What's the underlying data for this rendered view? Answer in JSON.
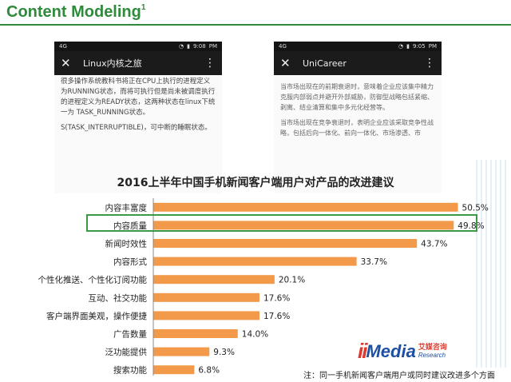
{
  "slide": {
    "title": "Content Modeling",
    "title_sup": "1"
  },
  "phones": [
    {
      "status_left": "4G",
      "status_time": "9:08",
      "time_suffix": "PM",
      "app_title": "Linux内核之旅",
      "close_icon": "close-icon",
      "menu_icon": "more-vert-icon",
      "paragraphs": [
        "很多操作系统教科书将正在CPU上执行的进程定义为RUNNING状态，而将可执行但是尚未被调度执行的进程定义为READY状态，这两种状态在linux下统一为 TASK_RUNNING状态。",
        "S(TASK_INTERRUPTIBLE)，可中断的睡眠状态。"
      ]
    },
    {
      "status_left": "4G",
      "status_time": "9:05",
      "time_suffix": "PM",
      "app_title": "UniCareer",
      "close_icon": "close-icon",
      "menu_icon": "more-vert-icon",
      "paragraphs": [
        "当市场出现在的前期衰退时，意味着企业应该集中精力克服内部弱点并避开外部威胁，防御型战略包括紧缩、剥离、结业清算和集中多元化经营等。",
        "当市场出现在竞争衰退时，表明企业应该采取竞争性战略，包括后向一体化、前向一体化、市场渗透、市"
      ]
    }
  ],
  "chart_data": {
    "type": "bar",
    "orientation": "horizontal",
    "title": "2016上半年中国手机新闻客户端用户对产品的改进建议",
    "categories": [
      "内容丰富度",
      "内容质量",
      "新闻时效性",
      "内容形式",
      "个性化推送、个性化订阅功能",
      "互动、社交功能",
      "客户端界面美观，操作便捷",
      "广告数量",
      "泛功能提供",
      "搜索功能"
    ],
    "values": [
      50.5,
      49.8,
      43.7,
      33.7,
      20.1,
      17.6,
      17.6,
      14.0,
      9.3,
      6.8
    ],
    "value_labels": [
      "50.5%",
      "49.8%",
      "43.7%",
      "33.7%",
      "20.1%",
      "17.6%",
      "17.6%",
      "14.0%",
      "9.3%",
      "6.8%"
    ],
    "highlighted_category": "内容质量",
    "xlim": [
      0,
      54
    ],
    "bar_color": "#f29a4a",
    "highlight_color": "#3a9a45"
  },
  "logo": {
    "mark": "ii",
    "name": "Media",
    "cn": "艾媒咨询",
    "en": "Research"
  },
  "footnote": "注：同一手机新闻客户端用户或同时建议改进多个方面"
}
